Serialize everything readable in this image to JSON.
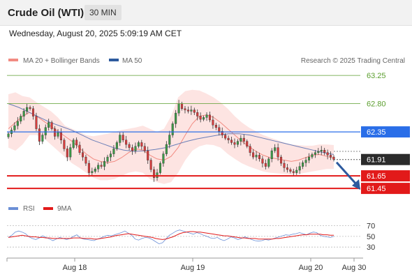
{
  "header": {
    "title": "Crude Oil (WTI)",
    "timeframe": "30 MIN",
    "datetime": "Wednesday, August 20, 2025 5:09:19 AM CET"
  },
  "chart_data": {
    "type": "candlestick",
    "instrument": "Crude Oil (WTI)",
    "interval": "30 MIN",
    "legend": [
      {
        "label": "MA 20 + Bollinger Bands",
        "color": "#f28b82"
      },
      {
        "label": "MA 50",
        "color": "#2d5a9e"
      }
    ],
    "attribution": "Research © 2025 Trading Central",
    "ylim": [
      61.34,
      63.34
    ],
    "x_labels": [
      "Aug 18",
      "Aug 19",
      "Aug 20",
      "Aug 30"
    ],
    "levels": [
      {
        "value": 63.25,
        "label": "63.25",
        "kind": "target",
        "color": "#5a9e2d"
      },
      {
        "value": 62.8,
        "label": "62.80",
        "kind": "target",
        "color": "#5a9e2d"
      },
      {
        "value": 62.35,
        "label": "62.35",
        "kind": "pivot",
        "color": "#2a6ee8"
      },
      {
        "value": 61.65,
        "label": "61.65",
        "kind": "support",
        "color": "#e21a1a"
      },
      {
        "value": 61.45,
        "label": "61.45",
        "kind": "support",
        "color": "#e21a1a"
      }
    ],
    "last_price": {
      "value": 61.91,
      "label": "61.91"
    },
    "forecast_arrow": {
      "from": 61.91,
      "to": 61.45,
      "direction": "down",
      "color": "#2d5a9e"
    },
    "series": {
      "close": [
        62.32,
        62.38,
        62.45,
        62.52,
        62.6,
        62.68,
        62.74,
        62.72,
        62.6,
        62.4,
        62.2,
        62.3,
        62.42,
        62.5,
        62.4,
        62.28,
        62.34,
        62.22,
        62.08,
        61.95,
        62.1,
        62.22,
        62.14,
        62.02,
        61.95,
        61.85,
        61.7,
        61.72,
        61.76,
        61.82,
        61.8,
        61.88,
        61.95,
        62,
        62.08,
        62.18,
        62.3,
        62.22,
        62.15,
        62.1,
        62.05,
        62.12,
        62.18,
        62.12,
        62.05,
        61.9,
        61.75,
        61.62,
        61.7,
        61.85,
        62,
        62.15,
        62.3,
        62.48,
        62.65,
        62.8,
        62.72,
        62.7,
        62.68,
        62.7,
        62.66,
        62.6,
        62.55,
        62.58,
        62.62,
        62.54,
        62.46,
        62.42,
        62.36,
        62.3,
        62.25,
        62.22,
        62.18,
        62.15,
        62.2,
        62.25,
        62.2,
        62.12,
        62.02,
        61.95,
        61.98,
        61.92,
        61.85,
        61.8,
        61.92,
        62.05,
        62.1,
        61.95,
        61.85,
        61.78,
        61.75,
        61.72,
        61.7,
        61.74,
        61.8,
        61.86,
        61.9,
        61.95,
        61.99,
        62.02,
        62.04,
        62.06,
        62.02,
        61.98,
        61.95,
        61.91
      ],
      "ma20": [
        62.4,
        62.5,
        62.6,
        62.66,
        62.6,
        62.52,
        62.44,
        62.36,
        62.28,
        62.2,
        62.1,
        62,
        61.92,
        61.88,
        61.86,
        61.88,
        61.94,
        62.02,
        62.08,
        62.06,
        61.98,
        61.92,
        61.9,
        61.96,
        62.1,
        62.3,
        62.48,
        62.6,
        62.62,
        62.58,
        62.5,
        62.4,
        62.3,
        62.2,
        62.12,
        62.04,
        61.98,
        61.94,
        61.92,
        61.9,
        61.88,
        61.9,
        61.94,
        61.98,
        61.99,
        61.96,
        61.93
      ],
      "bb_upper": [
        62.95,
        62.98,
        62.92,
        62.9,
        62.82,
        62.75,
        62.68,
        62.58,
        62.45,
        62.4,
        62.35,
        62.3,
        62.28,
        62.3,
        62.32,
        62.35,
        62.38,
        62.4,
        62.42,
        62.45,
        62.4,
        62.35,
        62.4,
        62.6,
        62.9,
        63,
        63.02,
        63.01,
        62.96,
        62.9,
        62.82,
        62.72,
        62.6,
        62.5,
        62.42,
        62.36,
        62.3,
        62.26,
        62.22,
        62.18,
        62.15,
        62.14,
        62.13,
        62.13,
        62.15,
        62.15,
        62.14
      ],
      "bb_lower": [
        62.1,
        62.05,
        62.15,
        62.3,
        62.3,
        62.25,
        62.15,
        62.05,
        61.95,
        61.85,
        61.78,
        61.7,
        61.62,
        61.58,
        61.58,
        61.6,
        61.65,
        61.7,
        61.72,
        61.7,
        61.6,
        61.55,
        61.52,
        61.55,
        61.7,
        61.9,
        62.05,
        62.12,
        62.15,
        62.14,
        62.1,
        62,
        61.92,
        61.85,
        61.8,
        61.76,
        61.72,
        61.7,
        61.69,
        61.68,
        61.67,
        61.68,
        61.7,
        61.72,
        61.74,
        61.76,
        61.76
      ],
      "ma50": [
        62.8,
        62.74,
        62.66,
        62.58,
        62.5,
        62.44,
        62.38,
        62.3,
        62.22,
        62.16,
        62.1,
        62.06,
        62.04,
        62.05,
        62.07,
        62.1,
        62.15,
        62.2,
        62.24,
        62.27,
        62.3,
        62.32,
        62.32,
        62.3,
        62.26,
        62.22,
        62.18,
        62.14,
        62.1,
        62.06,
        62.02,
        61.99
      ],
      "rsi": [
        48,
        52,
        58,
        60,
        58,
        55,
        49,
        46,
        44,
        47,
        51,
        48,
        45,
        42,
        45,
        48,
        46,
        44,
        46,
        50,
        53,
        47,
        45,
        44,
        43,
        42,
        45,
        47,
        50,
        52,
        51,
        53,
        55,
        57,
        60,
        56,
        52,
        45,
        43,
        46,
        48,
        47,
        44,
        40,
        36,
        38,
        45,
        52,
        56,
        60,
        62,
        60,
        58,
        56,
        54,
        57,
        55,
        52,
        50,
        47,
        46,
        48,
        44,
        42,
        45,
        49,
        47,
        44,
        46,
        49,
        47,
        44,
        42,
        41,
        42,
        44,
        43,
        45,
        47,
        49,
        51,
        53,
        52,
        54,
        55,
        57,
        55,
        53,
        56,
        58,
        57,
        52,
        50,
        49,
        48,
        50
      ],
      "rsi_ma9": [
        48,
        49,
        50,
        51,
        52,
        51,
        50,
        49,
        49,
        48,
        48,
        47,
        47,
        46,
        46,
        46,
        46,
        46,
        46,
        47,
        47,
        47,
        46,
        46,
        46,
        45,
        45,
        46,
        47,
        48,
        49,
        51,
        52,
        53,
        54,
        55,
        54,
        53,
        52,
        51,
        50,
        49,
        48,
        46,
        45,
        44,
        45,
        47,
        49,
        52,
        55,
        57,
        58,
        59,
        59,
        58,
        58,
        57,
        56,
        55,
        54,
        53,
        52,
        51,
        51,
        50,
        49,
        48,
        47,
        47,
        46,
        46,
        46,
        45,
        45,
        45,
        45,
        45,
        46,
        46,
        47,
        48,
        49,
        50,
        51,
        52,
        53,
        53,
        54,
        54,
        54,
        54,
        53,
        53,
        52,
        52
      ],
      "rsi_legend": [
        {
          "label": "RSI",
          "color": "#6b8fd6"
        },
        {
          "label": "9MA",
          "color": "#e21a1a"
        }
      ],
      "rsi_ticks": [
        70,
        50,
        30
      ]
    }
  }
}
